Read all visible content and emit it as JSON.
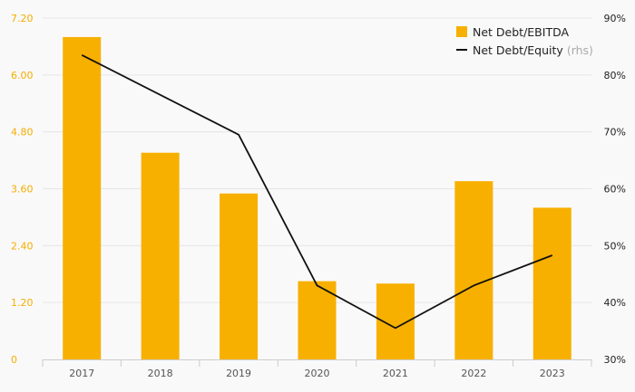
{
  "chart_data": {
    "type": "bar",
    "categories": [
      "2017",
      "2018",
      "2019",
      "2020",
      "2021",
      "2022",
      "2023"
    ],
    "series": [
      {
        "name": "Net Debt/EBITDA",
        "type": "bar",
        "axis": "left",
        "values": [
          6.8,
          4.36,
          3.5,
          1.65,
          1.6,
          3.76,
          3.2
        ],
        "color": "#f7b000"
      },
      {
        "name": "Net Debt/Equity",
        "name_suffix": "(rhs)",
        "type": "line",
        "axis": "right",
        "values": [
          83.5,
          null,
          69.5,
          43,
          35.5,
          43,
          48.3
        ],
        "color": "#111111"
      }
    ],
    "y_left": {
      "lim": [
        0,
        7.2
      ],
      "ticks": [
        0,
        1.2,
        2.4,
        3.6,
        4.8,
        6.0,
        7.2
      ],
      "tick_labels": [
        "0",
        "1.20",
        "2.40",
        "3.60",
        "4.80",
        "6.00",
        "7.20"
      ],
      "color": "#f5ad00"
    },
    "y_right": {
      "lim": [
        30,
        90
      ],
      "ticks": [
        30,
        40,
        50,
        60,
        70,
        80,
        90
      ],
      "tick_labels": [
        "30%",
        "40%",
        "50%",
        "60%",
        "70%",
        "80%",
        "90%"
      ]
    },
    "grid": true,
    "legend_position": "top-right",
    "title": "",
    "xlabel": "",
    "ylabel": ""
  }
}
